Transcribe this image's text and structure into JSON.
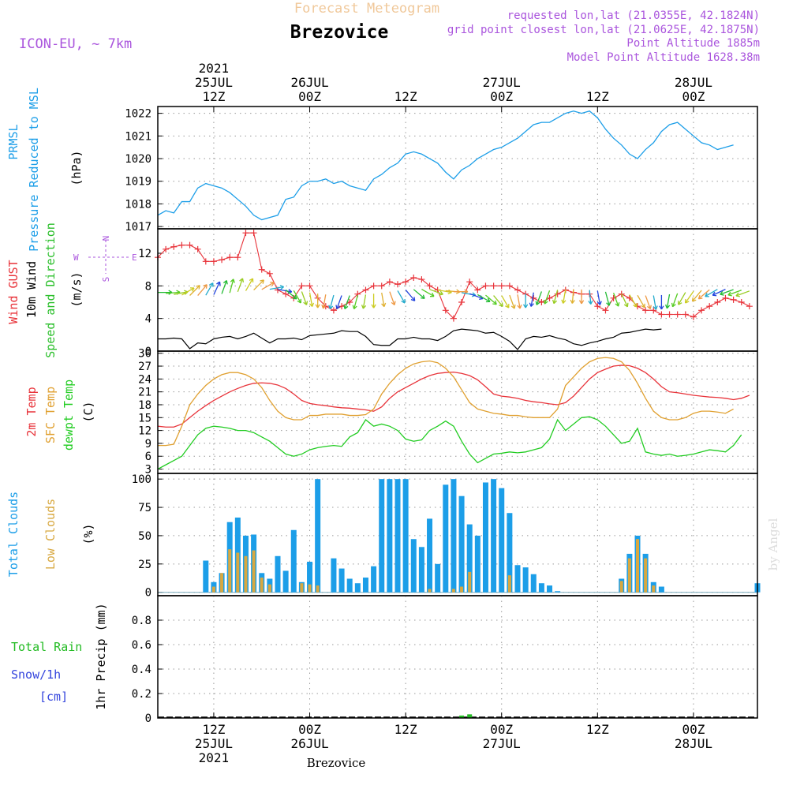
{
  "header": {
    "faded_title": "Forecast Meteogram",
    "location": "Brezovice",
    "model": "ICON-EU, ~ 7km",
    "requested": "requested lon,lat (21.0355E, 42.1824N)",
    "grid_point": "grid point closest lon,lat (21.0625E, 42.1875N)",
    "point_altitude": "Point Altitude 1885m",
    "model_altitude": "Model Point Altitude 1628.38m",
    "watermark": "by Angel",
    "footer_location": "Brezovice"
  },
  "colors": {
    "pressure": "#1c9ee8",
    "gust": "#e8333a",
    "wind": "#000000",
    "wind_dir_label": "#2bbf2b",
    "temp2m": "#e8333a",
    "sfc_temp": "#e0a030",
    "dewpt": "#22cc22",
    "total_clouds": "#1c9ee8",
    "low_clouds": "#d8a840",
    "rain": "#22bb22",
    "snow": "#3344dd",
    "compass": "#aa55dd",
    "header_purple": "#aa55dd",
    "faded": "#f0c89a"
  },
  "chart_data": {
    "type": "line",
    "time_axis": {
      "start": "2021-07-25 05Z",
      "end": "2021-07-28 08Z",
      "step_hours": 1,
      "top_ticks": [
        {
          "h": 7,
          "lines": [
            "2021",
            "25JUL",
            "12Z"
          ]
        },
        {
          "h": 19,
          "lines": [
            "26JUL",
            "00Z"
          ]
        },
        {
          "h": 31,
          "lines": [
            "12Z"
          ]
        },
        {
          "h": 43,
          "lines": [
            "27JUL",
            "00Z"
          ]
        },
        {
          "h": 55,
          "lines": [
            "12Z"
          ]
        },
        {
          "h": 67,
          "lines": [
            "28JUL",
            "00Z"
          ]
        }
      ],
      "bottom_ticks": [
        {
          "h": 7,
          "lines": [
            "12Z",
            "25JUL",
            "2021"
          ]
        },
        {
          "h": 19,
          "lines": [
            "00Z",
            "26JUL"
          ]
        },
        {
          "h": 31,
          "lines": [
            "12Z"
          ]
        },
        {
          "h": 43,
          "lines": [
            "00Z",
            "27JUL"
          ]
        },
        {
          "h": 55,
          "lines": [
            "12Z"
          ]
        },
        {
          "h": 67,
          "lines": [
            "00Z",
            "28JUL"
          ]
        }
      ]
    },
    "panels": [
      {
        "id": "pressure",
        "labels": [
          "PRMSL",
          "Pressure Reduced to MSL"
        ],
        "unit": "(hPa)",
        "ylim": [
          1016.9,
          1022.3
        ],
        "yticks": [
          "1017",
          "1018",
          "1019",
          "1020",
          "1021",
          "1022"
        ],
        "series": [
          {
            "name": "PRMSL",
            "values": [
              1017.5,
              1017.7,
              1017.6,
              1018.1,
              1018.1,
              1018.7,
              1018.9,
              1018.8,
              1018.7,
              1018.5,
              1018.2,
              1017.9,
              1017.5,
              1017.3,
              1017.4,
              1017.5,
              1018.2,
              1018.3,
              1018.8,
              1019.0,
              1019.0,
              1019.1,
              1018.9,
              1019.0,
              1018.8,
              1018.7,
              1018.6,
              1019.1,
              1019.3,
              1019.6,
              1019.8,
              1020.2,
              1020.3,
              1020.2,
              1020.0,
              1019.8,
              1019.4,
              1019.1,
              1019.5,
              1019.7,
              1020.0,
              1020.2,
              1020.4,
              1020.5,
              1020.7,
              1020.9,
              1021.2,
              1021.5,
              1021.6,
              1021.6,
              1021.8,
              1022.0,
              1022.1,
              1022.0,
              1022.1,
              1021.8,
              1021.3,
              1020.9,
              1020.6,
              1020.2,
              1020.0,
              1020.4,
              1020.7,
              1021.2,
              1021.5,
              1021.6,
              1021.3,
              1021.0,
              1020.7,
              1020.6,
              1020.4,
              1020.5,
              1020.6
            ]
          }
        ]
      },
      {
        "id": "wind",
        "labels": [
          "Wind GUST",
          "10m Wind",
          "Speed and Direction"
        ],
        "unit": "(m/s)",
        "compass": [
          "N",
          "W",
          "E",
          "S"
        ],
        "ylim": [
          0,
          15
        ],
        "yticks": [
          "0",
          "4",
          "8",
          "12"
        ],
        "series": [
          {
            "name": "Wind GUST",
            "values": [
              11.5,
              12.5,
              12.8,
              13.0,
              13.0,
              12.5,
              11.0,
              11.0,
              11.2,
              11.5,
              11.5,
              14.5,
              14.5,
              10.0,
              9.5,
              7.5,
              7.0,
              6.5,
              8.0,
              8.0,
              6.5,
              5.5,
              5.0,
              5.5,
              6.0,
              7.0,
              7.5,
              8.0,
              8.0,
              8.5,
              8.2,
              8.5,
              9.0,
              8.8,
              8.0,
              7.5,
              5.0,
              4.0,
              6.0,
              8.5,
              7.5,
              8.0,
              8.0,
              8.0,
              8.0,
              7.5,
              7.0,
              6.5,
              6.0,
              6.5,
              7.0,
              7.5,
              7.2,
              7.0,
              7.0,
              5.5,
              5.0,
              6.5,
              7.0,
              6.5,
              5.5,
              5.0,
              5.0,
              4.5,
              4.5,
              4.5,
              4.5,
              4.2,
              5.0,
              5.5,
              6.0,
              6.5,
              6.3,
              6.0,
              5.5
            ]
          },
          {
            "name": "10m Wind",
            "values": [
              1.5,
              1.5,
              1.6,
              1.5,
              0.3,
              1.0,
              0.9,
              1.5,
              1.7,
              1.8,
              1.5,
              1.8,
              2.2,
              1.6,
              1.0,
              1.5,
              1.5,
              1.6,
              1.4,
              1.9,
              2.0,
              2.1,
              2.2,
              2.5,
              2.4,
              2.4,
              1.8,
              0.8,
              0.7,
              0.7,
              1.5,
              1.5,
              1.7,
              1.5,
              1.5,
              1.3,
              1.8,
              2.5,
              2.7,
              2.6,
              2.5,
              2.2,
              2.3,
              1.8,
              1.2,
              0.2,
              1.5,
              1.8,
              1.7,
              1.9,
              1.6,
              1.4,
              0.9,
              0.7,
              1.0,
              1.2,
              1.5,
              1.7,
              2.2,
              2.3,
              2.5,
              2.7,
              2.6,
              2.7
            ]
          },
          {
            "name": "Wind Direction",
            "values": [
              90,
              85,
              80,
              60,
              45,
              40,
              30,
              25,
              20,
              15,
              20,
              30,
              45,
              60,
              80,
              100,
              130,
              150,
              160,
              170,
              180,
              190,
              195,
              200,
              200,
              195,
              190,
              180,
              170,
              160,
              150,
              140,
              130,
              120,
              110,
              100,
              95,
              90,
              100,
              110,
              120,
              130,
              140,
              150,
              160,
              170,
              180,
              190,
              200,
              200,
              195,
              190,
              185,
              180,
              175,
              170,
              165,
              160,
              155,
              150,
              150,
              160,
              170,
              180,
              190,
              200,
              210,
              215,
              220,
              230,
              240,
              245,
              250,
              250,
              250
            ]
          }
        ]
      },
      {
        "id": "temperature",
        "labels": [
          "2m Temp",
          "SFC Temp",
          "dewpt Temp"
        ],
        "unit": "(C)",
        "ylim": [
          2,
          30.5
        ],
        "yticks": [
          "3",
          "6",
          "9",
          "12",
          "15",
          "18",
          "21",
          "24",
          "27",
          "30"
        ],
        "series": [
          {
            "name": "2m Temp",
            "values": [
              13.0,
              12.8,
              12.8,
              13.5,
              15.0,
              16.5,
              17.8,
              19.0,
              20.0,
              21.0,
              21.8,
              22.5,
              23.0,
              23.1,
              23.0,
              22.6,
              21.8,
              20.5,
              19.0,
              18.3,
              18.0,
              17.8,
              17.5,
              17.3,
              17.2,
              17.0,
              16.8,
              16.5,
              17.5,
              19.5,
              21.0,
              22.0,
              23.0,
              24.0,
              24.8,
              25.3,
              25.5,
              25.6,
              25.3,
              24.8,
              23.8,
              22.2,
              20.5,
              20.0,
              19.8,
              19.5,
              19.0,
              18.7,
              18.5,
              18.2,
              18.0,
              18.5,
              20.0,
              22.0,
              24.0,
              25.5,
              26.3,
              27.0,
              27.2,
              27.1,
              26.5,
              25.5,
              24.0,
              22.2,
              21.0,
              20.8,
              20.5,
              20.2,
              20.0,
              19.8,
              19.7,
              19.5,
              19.2,
              19.5,
              20.2
            ]
          },
          {
            "name": "SFC Temp",
            "values": [
              8.5,
              8.5,
              8.8,
              13.0,
              18.0,
              20.5,
              22.5,
              24.0,
              25.0,
              25.5,
              25.5,
              25.0,
              24.0,
              22.0,
              19.0,
              16.5,
              15.0,
              14.5,
              14.5,
              15.5,
              15.5,
              15.8,
              15.8,
              15.8,
              15.5,
              15.5,
              15.7,
              17.0,
              20.5,
              23.0,
              25.0,
              26.5,
              27.5,
              28.0,
              28.2,
              27.8,
              26.5,
              24.5,
              21.5,
              18.5,
              17.0,
              16.5,
              16.0,
              15.8,
              15.5,
              15.5,
              15.2,
              15.0,
              15.0,
              15.0,
              17.0,
              22.5,
              24.5,
              26.5,
              28.0,
              28.8,
              29.0,
              28.8,
              28.0,
              26.0,
              23.0,
              19.5,
              16.5,
              15.0,
              14.5,
              14.5,
              15.0,
              16.0,
              16.5,
              16.5,
              16.3,
              16.0,
              17.0
            ]
          },
          {
            "name": "dewpt Temp",
            "values": [
              3.0,
              4.0,
              5.0,
              6.0,
              8.5,
              11.0,
              12.5,
              13.0,
              12.8,
              12.5,
              12.0,
              12.0,
              11.5,
              10.5,
              9.5,
              8.0,
              6.5,
              6.0,
              6.5,
              7.5,
              8.0,
              8.3,
              8.5,
              8.3,
              10.5,
              11.5,
              14.5,
              13.0,
              13.5,
              13.0,
              12.0,
              10.0,
              9.5,
              9.8,
              12.0,
              13.0,
              14.2,
              13.0,
              9.5,
              6.5,
              4.5,
              5.5,
              6.5,
              6.7,
              7.0,
              6.8,
              7.0,
              7.5,
              8.0,
              10.0,
              14.5,
              12.0,
              13.5,
              15.0,
              15.2,
              14.5,
              13.0,
              11.0,
              9.0,
              9.5,
              12.5,
              7.0,
              6.5,
              6.2,
              6.5,
              6.0,
              6.2,
              6.5,
              7.0,
              7.5,
              7.3,
              7.0,
              8.5,
              11.0
            ]
          }
        ]
      },
      {
        "id": "clouds",
        "labels": [
          "Total Clouds",
          "Low Clouds"
        ],
        "unit": "(%)",
        "ylim": [
          -3,
          105
        ],
        "yticks": [
          "0",
          "25",
          "50",
          "75",
          "100"
        ],
        "series": [
          {
            "name": "Total Clouds",
            "values": [
              0,
              0,
              0,
              0,
              0,
              0,
              28,
              9,
              17,
              62,
              66,
              50,
              51,
              17,
              12,
              32,
              19,
              55,
              9,
              27,
              100,
              0,
              30,
              21,
              12,
              8,
              13,
              23,
              100,
              100,
              100,
              100,
              47,
              40,
              65,
              25,
              95,
              100,
              85,
              60,
              50,
              97,
              100,
              92,
              70,
              24,
              22,
              16,
              8,
              6,
              1,
              0,
              0,
              0,
              0,
              0,
              0,
              0,
              12,
              34,
              50,
              34,
              9,
              5,
              0,
              0,
              0,
              0,
              0,
              0,
              0,
              0,
              0,
              0,
              0,
              8
            ]
          },
          {
            "name": "Low Clouds",
            "values": [
              0,
              0,
              0,
              0,
              0,
              0,
              0,
              5,
              17,
              38,
              35,
              32,
              37,
              13,
              7,
              0,
              0,
              0,
              8,
              7,
              6,
              0,
              0,
              0,
              0,
              0,
              0,
              0,
              0,
              0,
              0,
              0,
              0,
              0,
              3,
              0,
              0,
              3,
              5,
              18,
              0,
              0,
              0,
              0,
              15,
              0,
              0,
              0,
              0,
              0,
              0,
              0,
              0,
              0,
              0,
              0,
              0,
              0,
              10,
              30,
              47,
              30,
              6,
              0,
              0,
              0,
              0,
              0,
              0,
              0,
              0,
              0,
              0,
              0,
              0,
              0
            ]
          }
        ]
      },
      {
        "id": "precip",
        "labels": [
          "Total Rain",
          "Snow/1h",
          "[cm]",
          "1hr Precip (mm)"
        ],
        "unit": "",
        "ylim": [
          0,
          1.0
        ],
        "yticks": [
          "0",
          "0.2",
          "0.4",
          "0.6",
          "0.8"
        ],
        "series": [
          {
            "name": "Total Rain",
            "values": [
              0,
              0,
              0,
              0,
              0,
              0,
              0,
              0,
              0,
              0,
              0,
              0.003,
              0,
              0,
              0,
              0,
              0,
              0,
              0,
              0,
              0,
              0,
              0,
              0,
              0,
              0,
              0,
              0,
              0,
              0,
              0,
              0,
              0,
              0,
              0,
              0,
              0,
              0,
              0.02,
              0.03,
              0,
              0,
              0,
              0,
              0,
              0,
              0,
              0,
              0,
              0,
              0,
              0,
              0,
              0,
              0,
              0,
              0,
              0,
              0,
              0,
              0,
              0,
              0,
              0,
              0,
              0,
              0,
              0,
              0,
              0,
              0,
              0,
              0,
              0,
              0,
              0
            ]
          },
          {
            "name": "Snow/1h",
            "values": []
          }
        ]
      }
    ]
  }
}
